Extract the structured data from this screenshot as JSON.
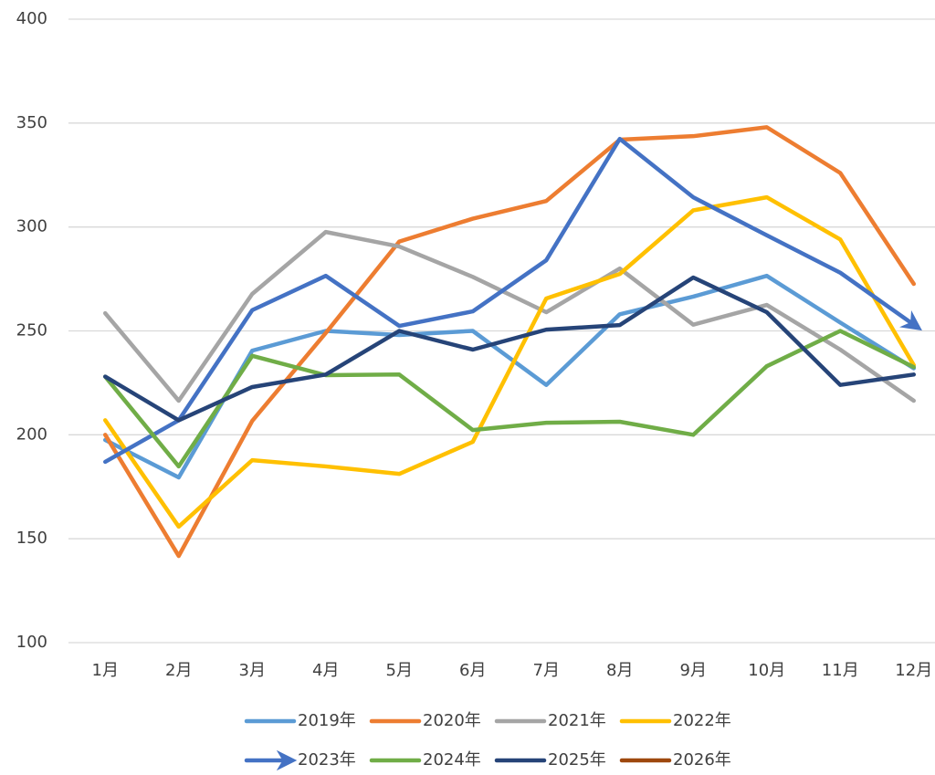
{
  "chart_data": {
    "type": "line",
    "categories": [
      "1月",
      "2月",
      "3月",
      "4月",
      "5月",
      "6月",
      "7月",
      "8月",
      "9月",
      "10月",
      "11月",
      "12月"
    ],
    "series": [
      {
        "name": "2019年",
        "color": "#5B9BD5",
        "values": [
          197.5,
          179.5,
          240.5,
          250,
          248,
          250,
          224,
          258,
          266.5,
          276.5,
          254,
          232
        ]
      },
      {
        "name": "2020年",
        "color": "#ED7D31",
        "values": [
          200,
          141.7,
          206.7,
          249,
          293,
          304,
          312.5,
          342,
          343.7,
          348,
          326,
          272.6
        ]
      },
      {
        "name": "2021年",
        "color": "#A5A5A5",
        "values": [
          258.5,
          216.4,
          267.8,
          297.6,
          290.6,
          276,
          259,
          280,
          253,
          262.5,
          241,
          216.4
        ]
      },
      {
        "name": "2022年",
        "color": "#FFC000",
        "values": [
          207,
          155.8,
          187.8,
          184.8,
          181.2,
          196.6,
          265.6,
          277.4,
          308,
          314.3,
          294,
          233.5
        ]
      },
      {
        "name": "2023年",
        "color": "#4472C4",
        "marker_end": "arrow",
        "values": [
          187,
          207,
          260,
          276.5,
          252.4,
          259.4,
          284,
          342.4,
          314.3,
          296,
          278,
          253
        ]
      },
      {
        "name": "2024年",
        "color": "#70AD47",
        "values": [
          228,
          184.8,
          238,
          228.7,
          229,
          202.3,
          205.8,
          206.3,
          200,
          233,
          250,
          232.6
        ]
      },
      {
        "name": "2025年",
        "color": "#264478",
        "values": [
          228,
          207,
          223,
          229,
          250,
          241,
          250.6,
          252.8,
          275.7,
          259,
          224,
          229
        ]
      },
      {
        "name": "2026年",
        "color": "#9E480E",
        "values": [
          null,
          null,
          null,
          null,
          null,
          null,
          null,
          null,
          null,
          null,
          null,
          null
        ]
      }
    ],
    "ylim": [
      100,
      400
    ],
    "yticks": [
      100,
      150,
      200,
      250,
      300,
      350,
      400
    ],
    "grid": true,
    "legend": "bottom"
  }
}
